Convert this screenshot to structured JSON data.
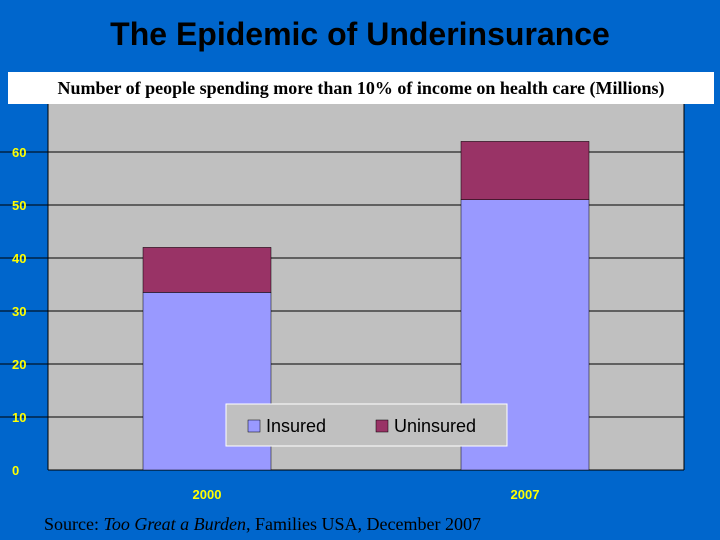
{
  "slide": {
    "title": "The Epidemic of Underinsurance",
    "subtitle": "Number of people spending more than 10% of income  on health care (Millions)",
    "source": {
      "prefix": "Source: ",
      "work": "Too Great a Burden",
      "suffix": ", Families USA, December 2007"
    },
    "colors": {
      "background": "#0066cc",
      "plot_area": "#c0c0c0",
      "insured": "#9999ff",
      "uninsured": "#993366",
      "axis_text": "#ffff00"
    }
  },
  "chart_data": {
    "type": "bar",
    "stacked": true,
    "categories": [
      "2000",
      "2007"
    ],
    "series": [
      {
        "name": "Insured",
        "values": [
          33.5,
          51
        ]
      },
      {
        "name": "Uninsured",
        "values": [
          8.5,
          11
        ]
      }
    ],
    "yticks": [
      "0",
      "10",
      "20",
      "30",
      "40",
      "50",
      "60"
    ],
    "ylim": [
      0,
      60
    ],
    "grid": true,
    "legend": "bottom-center"
  }
}
